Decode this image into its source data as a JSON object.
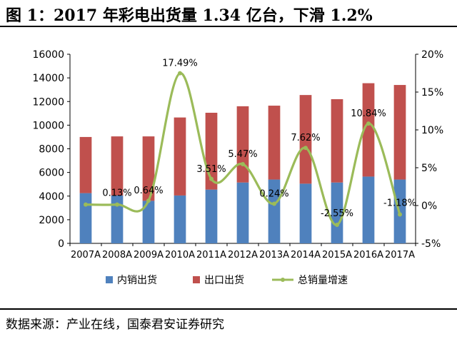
{
  "figure": {
    "title": "图 1：2017 年彩电出货量 1.34 亿台，下滑 1.2%",
    "source": "数据来源：产业在线，国泰君安证券研究"
  },
  "chart_data": {
    "type": "bar",
    "stacked": true,
    "categories": [
      "2007A",
      "2008A",
      "2009A",
      "2010A",
      "2011A",
      "2012A",
      "2013A",
      "2014A",
      "2015A",
      "2016A",
      "2017A"
    ],
    "series": [
      {
        "name": "内销出货",
        "type": "bar",
        "axis": "left",
        "color": "#4f81bd",
        "values": [
          4250,
          4050,
          3600,
          4050,
          4550,
          5150,
          5400,
          5050,
          5150,
          5650,
          5400
        ]
      },
      {
        "name": "出口出货",
        "type": "bar",
        "axis": "left",
        "color": "#c0504d",
        "values": [
          4750,
          5000,
          5450,
          6600,
          6500,
          6450,
          6250,
          7500,
          7050,
          7900,
          8000
        ]
      },
      {
        "name": "总销量增速",
        "type": "line",
        "axis": "right",
        "color": "#9bbb59",
        "values": [
          0.13,
          0.13,
          0.64,
          17.49,
          3.51,
          5.47,
          0.24,
          7.62,
          -2.55,
          10.84,
          -1.18
        ],
        "labels": [
          null,
          "0.13%",
          "0.64%",
          "17.49%",
          "3.51%",
          "5.47%",
          "0.24%",
          "7.62%",
          "-2.55%",
          "10.84%",
          "-1.18%"
        ]
      }
    ],
    "y_left": {
      "min": 0,
      "max": 16000,
      "ticks": [
        "0",
        "2000",
        "4000",
        "6000",
        "8000",
        "10000",
        "12000",
        "14000",
        "16000"
      ]
    },
    "y_right": {
      "min": -5,
      "max": 20,
      "ticks": [
        "-5%",
        "0%",
        "5%",
        "10%",
        "15%",
        "20%"
      ]
    },
    "legend_position": "bottom",
    "grid": false
  }
}
